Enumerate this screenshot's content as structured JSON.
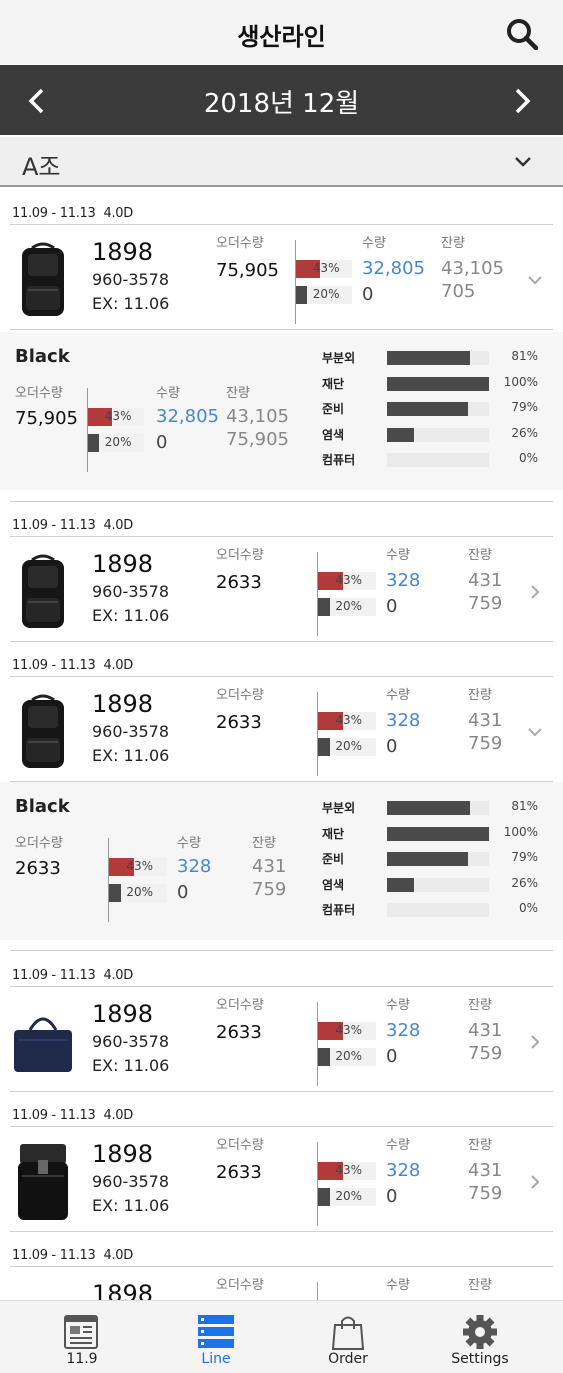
{
  "header": {
    "title": "생산라인",
    "search_icon": "search-icon"
  },
  "month_nav": {
    "label": "2018년 12월"
  },
  "group": {
    "label": "A조"
  },
  "cards": [
    {
      "date_range": "11.09 - 11.13",
      "count": "4.0D",
      "code": "1898",
      "style": "960-3578",
      "ex": "EX: 11.06",
      "order_label": "오더수량",
      "order_qty": "75,905",
      "bar1_pct": "43%",
      "bar1_value": 0.43,
      "bar2_pct": "20%",
      "bar2_value": 0.2,
      "qty_label": "수량",
      "qty": "32,805",
      "qty2": "0",
      "remain_label": "잔량",
      "remain1": "43,105",
      "remain2": "705",
      "expanded": true,
      "product": "black-backpack"
    },
    {
      "date_range": "11.09 - 11.13",
      "count": "4.0D",
      "code": "1898",
      "style": "960-3578",
      "ex": "EX: 11.06",
      "order_label": "오더수량",
      "order_qty": "2633",
      "bar1_pct": "43%",
      "bar1_value": 0.43,
      "bar2_pct": "20%",
      "bar2_value": 0.2,
      "qty_label": "수량",
      "qty": "328",
      "qty2": "0",
      "remain_label": "잔량",
      "remain1": "431",
      "remain2": "759",
      "expanded": false,
      "product": "black-backpack"
    },
    {
      "date_range": "11.09 - 11.13",
      "count": "4.0D",
      "code": "1898",
      "style": "960-3578",
      "ex": "EX: 11.06",
      "order_label": "오더수량",
      "order_qty": "2633",
      "bar1_pct": "43%",
      "bar1_value": 0.43,
      "bar2_pct": "20%",
      "bar2_value": 0.2,
      "qty_label": "수량",
      "qty": "328",
      "qty2": "0",
      "remain_label": "잔량",
      "remain1": "431",
      "remain2": "759",
      "expanded": true,
      "product": "black-backpack"
    },
    {
      "date_range": "11.09 - 11.13",
      "count": "4.0D",
      "code": "1898",
      "style": "960-3578",
      "ex": "EX: 11.06",
      "order_label": "오더수량",
      "order_qty": "2633",
      "bar1_pct": "43%",
      "bar1_value": 0.43,
      "bar2_pct": "20%",
      "bar2_value": 0.2,
      "qty_label": "수량",
      "qty": "328",
      "qty2": "0",
      "remain_label": "잔량",
      "remain1": "431",
      "remain2": "759",
      "expanded": false,
      "product": "navy-briefcase"
    },
    {
      "date_range": "11.09 - 11.13",
      "count": "4.0D",
      "code": "1898",
      "style": "960-3578",
      "ex": "EX: 11.06",
      "order_label": "오더수량",
      "order_qty": "2633",
      "bar1_pct": "43%",
      "bar1_value": 0.43,
      "bar2_pct": "20%",
      "bar2_value": 0.2,
      "qty_label": "수량",
      "qty": "328",
      "qty2": "0",
      "remain_label": "잔량",
      "remain1": "431",
      "remain2": "759",
      "expanded": false,
      "product": "black-rolltop-backpack"
    },
    {
      "date_range": "11.09 - 11.13",
      "count": "4.0D",
      "code": "1898",
      "order_label": "오더수량",
      "qty_label": "수량",
      "remain_label": "잔량",
      "product": "small-bags"
    }
  ],
  "details": [
    {
      "color": "Black",
      "order_label": "오더수량",
      "order_qty": "75,905",
      "bar1_pct": "43%",
      "bar1_value": 0.43,
      "bar2_pct": "20%",
      "bar2_value": 0.2,
      "qty_label": "수량",
      "qty": "32,805",
      "qty2": "0",
      "remain_label": "잔량",
      "remain1": "43,105",
      "remain2": "75,905",
      "processes": [
        {
          "name": "부분외",
          "pct": "81%",
          "value": 0.81
        },
        {
          "name": "재단",
          "pct": "100%",
          "value": 1.0
        },
        {
          "name": "준비",
          "pct": "79%",
          "value": 0.79
        },
        {
          "name": "염색",
          "pct": "26%",
          "value": 0.26
        },
        {
          "name": "컴퓨터",
          "pct": "0%",
          "value": 0
        }
      ]
    },
    {
      "color": "Black",
      "order_label": "오더수량",
      "order_qty": "2633",
      "bar1_pct": "43%",
      "bar1_value": 0.43,
      "bar2_pct": "20%",
      "bar2_value": 0.2,
      "qty_label": "수량",
      "qty": "328",
      "qty2": "0",
      "remain_label": "잔량",
      "remain1": "431",
      "remain2": "759",
      "processes": [
        {
          "name": "부분외",
          "pct": "81%",
          "value": 0.81
        },
        {
          "name": "재단",
          "pct": "100%",
          "value": 1.0
        },
        {
          "name": "준비",
          "pct": "79%",
          "value": 0.79
        },
        {
          "name": "염색",
          "pct": "26%",
          "value": 0.26
        },
        {
          "name": "컴퓨터",
          "pct": "0%",
          "value": 0
        }
      ]
    }
  ],
  "tabs": [
    {
      "label": "11.9",
      "icon": "document-icon",
      "active": false
    },
    {
      "label": "Line",
      "icon": "list-icon",
      "active": true
    },
    {
      "label": "Order",
      "icon": "shopping-bag-icon",
      "active": false
    },
    {
      "label": "Settings",
      "icon": "gear-icon",
      "active": false
    }
  ],
  "colors": {
    "accent": "#1a73e8",
    "bar_red": "#b33a3a",
    "bar_dark": "#4a4a4a",
    "qty_blue": "#4a86d0",
    "month_bar": "#3b3b3b"
  }
}
